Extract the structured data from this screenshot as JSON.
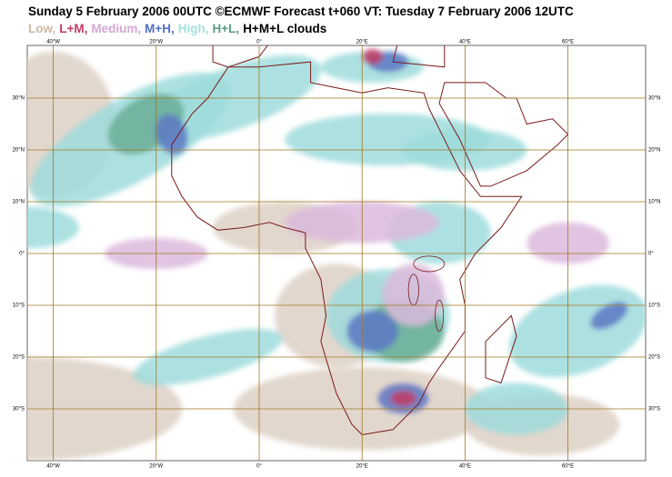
{
  "title": "Sunday 5 February 2006 00UTC ©ECMWF Forecast t+060 VT: Tuesday 7 February 2006 12UTC",
  "legend": [
    {
      "label": "Low,",
      "color": "#cdb8a4"
    },
    {
      "label": "L+M,",
      "color": "#c23a64"
    },
    {
      "label": "Medium,",
      "color": "#d6a6d6"
    },
    {
      "label": "M+H,",
      "color": "#5070c0"
    },
    {
      "label": "High,",
      "color": "#a6e0e0"
    },
    {
      "label": "H+L,",
      "color": "#5a9e82"
    },
    {
      "label": "H+M+L clouds",
      "color": "#000000"
    }
  ],
  "longitude_labels": [
    "40°W",
    "20°W",
    "0°",
    "20°E",
    "40°E",
    "60°E"
  ],
  "latitude_labels": [
    "30°N",
    "20°N",
    "10°N",
    "0°",
    "10°S",
    "20°S",
    "30°S"
  ]
}
